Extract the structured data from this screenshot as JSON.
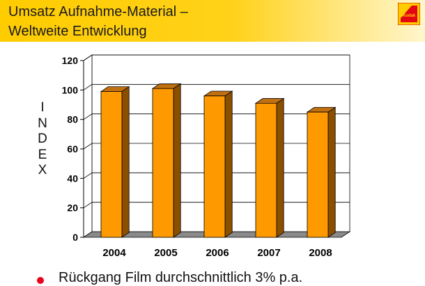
{
  "header": {
    "title_line1": "Umsatz Aufnahme-Material –",
    "title_line2": "Weltweite Entwicklung",
    "logo_text": "Kodak",
    "band_color": "#ffcc00"
  },
  "chart_data": {
    "type": "bar",
    "categories": [
      "2004",
      "2005",
      "2006",
      "2007",
      "2008"
    ],
    "values": [
      99,
      101,
      96,
      91,
      85
    ],
    "ylabel_letters": [
      "I",
      "N",
      "D",
      "E",
      "X"
    ],
    "ylim": [
      0,
      120
    ],
    "yticks": [
      "0",
      "20",
      "40",
      "60",
      "80",
      "100",
      "120"
    ],
    "grid": true,
    "legend": "none",
    "colors": {
      "bar_front": "#ff9900",
      "bar_side": "#8c4f00",
      "bar_top": "#c07010",
      "floor": "#8a8a8a",
      "wall": "#ffffff",
      "grid": "#000000"
    }
  },
  "bullets": [
    {
      "text": "Rückgang Film durchschnittlich 3% p.a.",
      "color": "#e8001c"
    }
  ]
}
